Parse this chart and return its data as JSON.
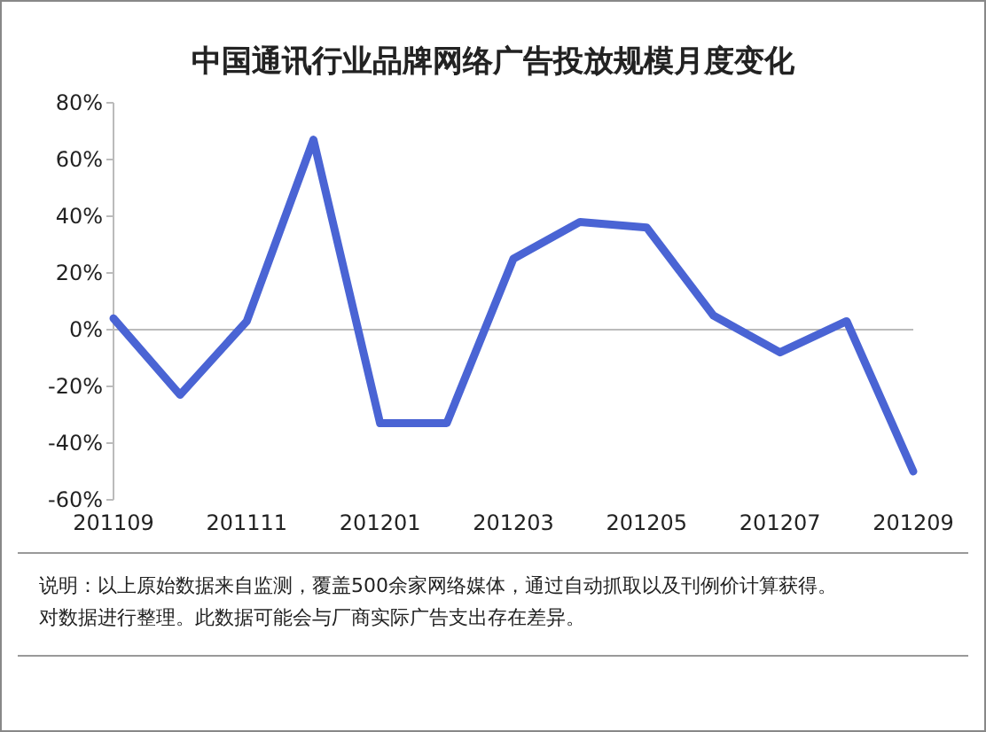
{
  "chart_data": {
    "type": "line",
    "title": "中国通讯行业品牌网络广告投放规模月度变化",
    "categories": [
      "201109",
      null,
      "201111",
      null,
      "201201",
      null,
      "201203",
      null,
      "201205",
      null,
      "201207",
      null,
      "201209"
    ],
    "series": [
      {
        "color": "#4a64d4",
        "values": [
          4,
          -23,
          3,
          67,
          -33,
          -33,
          25,
          38,
          36,
          5,
          -8,
          3,
          -50
        ]
      }
    ],
    "ylim": [
      -60,
      80
    ],
    "yticks": [
      {
        "value": -60,
        "label": "-60%"
      },
      {
        "value": -40,
        "label": "-40%"
      },
      {
        "value": -20,
        "label": "-20%"
      },
      {
        "value": 0,
        "label": "0%"
      },
      {
        "value": 20,
        "label": "20%"
      },
      {
        "value": 40,
        "label": "40%"
      },
      {
        "value": 60,
        "label": "60%"
      },
      {
        "value": 80,
        "label": "80%"
      }
    ],
    "marker": "none",
    "line_style": "solid",
    "annotations": [
      "说明：以上原始数据来自监测，覆盖500余家网络媒体，通过自动抓取以及刊例价计算获得。",
      "对数据进行整理。此数据可能会与厂商实际广告支出存在差异。"
    ]
  }
}
